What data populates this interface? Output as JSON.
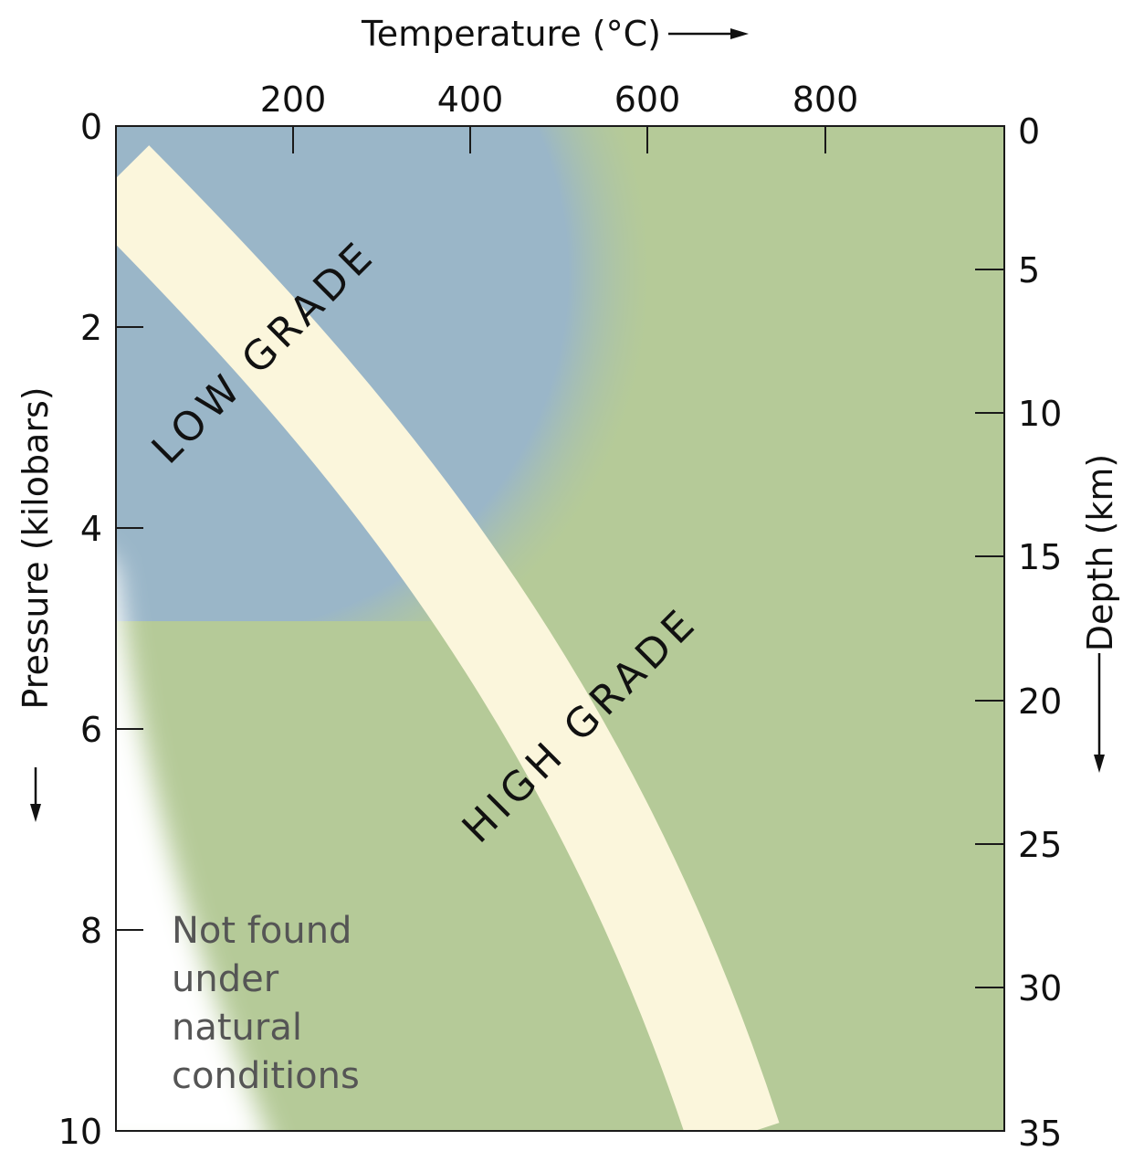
{
  "top_axis": {
    "label": "Temperature (°C)",
    "ticks": [
      "200",
      "400",
      "600",
      "800"
    ]
  },
  "left_axis": {
    "label": "Pressure (kilobars)",
    "ticks": [
      "0",
      "2",
      "4",
      "6",
      "8",
      "10"
    ]
  },
  "right_axis": {
    "label": "Depth (km)",
    "ticks": [
      "0",
      "5",
      "10",
      "15",
      "20",
      "25",
      "30",
      "35"
    ]
  },
  "regions": {
    "low_grade": "LOW GRADE",
    "high_grade": "HIGH GRADE",
    "not_found": [
      "Not found",
      "under",
      "natural",
      "conditions"
    ]
  },
  "colors": {
    "low_grade": "#9ab6c8",
    "high_grade": "#b5ca98",
    "band": "#fbf6dc",
    "not_found": "#ffffff"
  }
}
